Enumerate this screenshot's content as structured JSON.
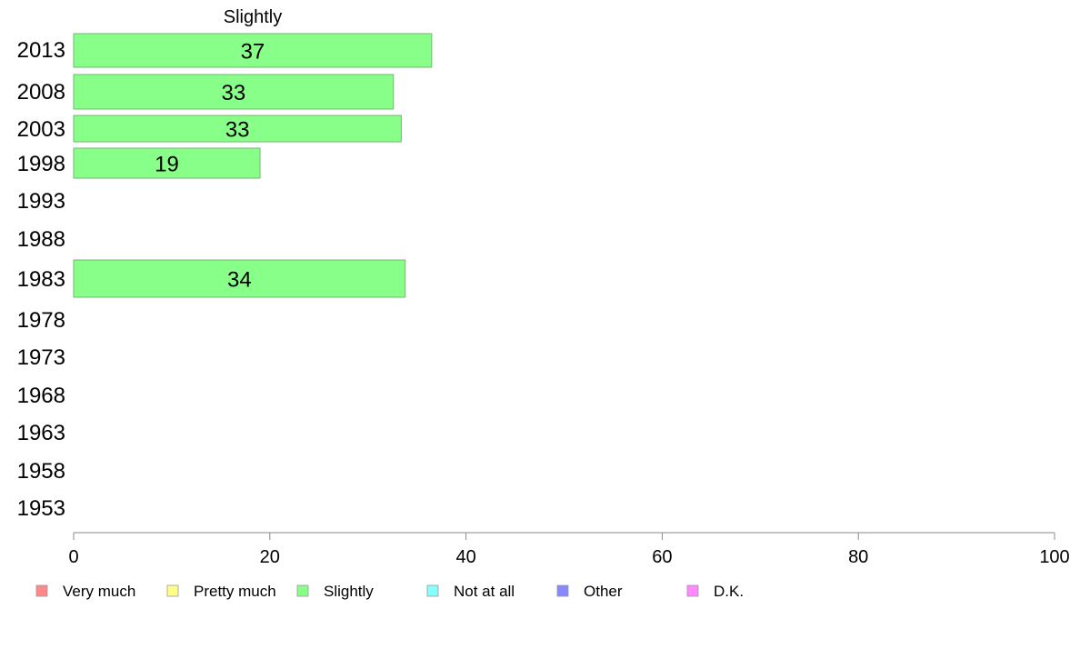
{
  "chart_data": {
    "type": "bar",
    "orientation": "horizontal",
    "title": "Slightly",
    "categories": [
      "2013",
      "2008",
      "2003",
      "1998",
      "1993",
      "1988",
      "1983",
      "1978",
      "1973",
      "1968",
      "1963",
      "1958",
      "1953"
    ],
    "series": [
      {
        "name": "Slightly",
        "color": "#88ff88",
        "values": [
          36.5,
          32.6,
          33.4,
          19.0,
          null,
          null,
          33.8,
          null,
          null,
          null,
          null,
          null,
          null
        ],
        "labels": [
          "37",
          "33",
          "33",
          "19",
          "",
          "",
          "34",
          "",
          "",
          "",
          "",
          "",
          ""
        ]
      }
    ],
    "xlim": [
      0,
      100
    ],
    "xticks": [
      0,
      20,
      40,
      60,
      80,
      100
    ],
    "grid": false,
    "legend": {
      "position": "bottom",
      "entries": [
        {
          "label": "Very much",
          "color": "#ff8888"
        },
        {
          "label": "Pretty much",
          "color": "#ffff88"
        },
        {
          "label": "Slightly",
          "color": "#88ff88"
        },
        {
          "label": "Not at all",
          "color": "#88ffff"
        },
        {
          "label": "Other",
          "color": "#8888ff"
        },
        {
          "label": "D.K.",
          "color": "#ff88ff"
        }
      ]
    }
  }
}
